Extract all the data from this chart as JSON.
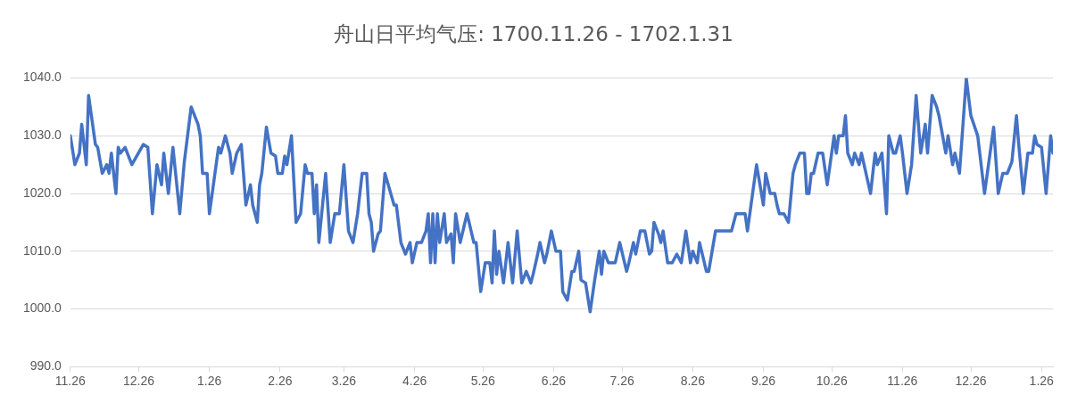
{
  "chart_data": {
    "type": "line",
    "title": "舟山日平均气压: 1700.11.26 - 1702.1.31",
    "xlim": [
      "1700-11-26",
      "1702-01-31"
    ],
    "xticks": [
      {
        "value": "1700-11-26",
        "label": "11.26"
      },
      {
        "value": "1700-12-26",
        "label": "12.26"
      },
      {
        "value": "1701-01-26",
        "label": "1.26"
      },
      {
        "value": "1701-02-26",
        "label": "2.26"
      },
      {
        "value": "1701-03-26",
        "label": "3.26"
      },
      {
        "value": "1701-04-26",
        "label": "4.26"
      },
      {
        "value": "1701-05-26",
        "label": "5.26"
      },
      {
        "value": "1701-06-26",
        "label": "6.26"
      },
      {
        "value": "1701-07-26",
        "label": "7.26"
      },
      {
        "value": "1701-08-26",
        "label": "8.26"
      },
      {
        "value": "1701-09-26",
        "label": "9.26"
      },
      {
        "value": "1701-10-26",
        "label": "10.26"
      },
      {
        "value": "1701-11-26",
        "label": "11.26"
      },
      {
        "value": "1701-12-26",
        "label": "12.26"
      },
      {
        "value": "1702-01-26",
        "label": "1.26"
      }
    ],
    "ylim": [
      990,
      1040
    ],
    "yticks": [
      {
        "value": 990,
        "label": "990.0"
      },
      {
        "value": 1000,
        "label": "1000.0"
      },
      {
        "value": 1010,
        "label": "1010.0"
      },
      {
        "value": 1020,
        "label": "1020.0"
      },
      {
        "value": 1030,
        "label": "1030.0"
      },
      {
        "value": 1040,
        "label": "1040.0"
      }
    ],
    "grid": "y",
    "legend": false,
    "marker": "none",
    "line_style": "solid",
    "series": [
      {
        "color": "#4472c4",
        "x": [
          "1700-11-26",
          "1700-11-28",
          "1700-11-30",
          "1700-12-01",
          "1700-12-03",
          "1700-12-04",
          "1700-12-07",
          "1700-12-08",
          "1700-12-10",
          "1700-12-12",
          "1700-12-13",
          "1700-12-14",
          "1700-12-16",
          "1700-12-17",
          "1700-12-18",
          "1700-12-20",
          "1700-12-23",
          "1700-12-28",
          "1700-12-30",
          "1701-01-01",
          "1701-01-03",
          "1701-01-05",
          "1701-01-06",
          "1701-01-08",
          "1701-01-10",
          "1701-01-13",
          "1701-01-15",
          "1701-01-18",
          "1701-01-21",
          "1701-01-22",
          "1701-01-23",
          "1701-01-25",
          "1701-01-26",
          "1701-01-30",
          "1701-01-31",
          "1701-02-02",
          "1701-02-04",
          "1701-02-05",
          "1701-02-07",
          "1701-02-09",
          "1701-02-11",
          "1701-02-13",
          "1701-02-14",
          "1701-02-16",
          "1701-02-17",
          "1701-02-18",
          "1701-02-20",
          "1701-02-22",
          "1701-02-24",
          "1701-02-25",
          "1701-02-27",
          "1701-02-28",
          "1701-03-01",
          "1701-03-03",
          "1701-03-05",
          "1701-03-07",
          "1701-03-09",
          "1701-03-10",
          "1701-03-12",
          "1701-03-13",
          "1701-03-14",
          "1701-03-15",
          "1701-03-18",
          "1701-03-20",
          "1701-03-22",
          "1701-03-24",
          "1701-03-26",
          "1701-03-28",
          "1701-03-30",
          "1701-04-01",
          "1701-04-03",
          "1701-04-05",
          "1701-04-06",
          "1701-04-07",
          "1701-04-08",
          "1701-04-10",
          "1701-04-11",
          "1701-04-13",
          "1701-04-17",
          "1701-04-18",
          "1701-04-20",
          "1701-04-22",
          "1701-04-24",
          "1701-04-25",
          "1701-04-27",
          "1701-04-29",
          "1701-05-01",
          "1701-05-02",
          "1701-05-03",
          "1701-05-04",
          "1701-05-05",
          "1701-05-06",
          "1701-05-07",
          "1701-05-09",
          "1701-05-10",
          "1701-05-12",
          "1701-05-13",
          "1701-05-14",
          "1701-05-16",
          "1701-05-19",
          "1701-05-22",
          "1701-05-23",
          "1701-05-25",
          "1701-05-27",
          "1701-05-29",
          "1701-05-30",
          "1701-05-31",
          "1701-06-01",
          "1701-06-02",
          "1701-06-04",
          "1701-06-06",
          "1701-06-08",
          "1701-06-10",
          "1701-06-12",
          "1701-06-14",
          "1701-06-16",
          "1701-06-17",
          "1701-06-19",
          "1701-06-20",
          "1701-06-22",
          "1701-06-23",
          "1701-06-25",
          "1701-06-27",
          "1701-06-29",
          "1701-06-30",
          "1701-07-02",
          "1701-07-04",
          "1701-07-05",
          "1701-07-07",
          "1701-07-08",
          "1701-07-10",
          "1701-07-12",
          "1701-07-14",
          "1701-07-16",
          "1701-07-17",
          "1701-07-18",
          "1701-07-20",
          "1701-07-23",
          "1701-07-25",
          "1701-07-28",
          "1701-07-29",
          "1701-07-31",
          "1701-08-01",
          "1701-08-03",
          "1701-08-05",
          "1701-08-07",
          "1701-08-08",
          "1701-08-09",
          "1701-08-11",
          "1701-08-12",
          "1701-08-13",
          "1701-08-15",
          "1701-08-17",
          "1701-08-19",
          "1701-08-21",
          "1701-08-23",
          "1701-08-25",
          "1701-08-26",
          "1701-08-28",
          "1701-08-29",
          "1701-09-01",
          "1701-09-02",
          "1701-09-05",
          "1701-09-12",
          "1701-09-14",
          "1701-09-18",
          "1701-09-19",
          "1701-09-23",
          "1701-09-26",
          "1701-09-27",
          "1701-09-29",
          "1701-10-01",
          "1701-10-02",
          "1701-10-03",
          "1701-10-05",
          "1701-10-07",
          "1701-10-09",
          "1701-10-10",
          "1701-10-12",
          "1701-10-14",
          "1701-10-15",
          "1701-10-16",
          "1701-10-17",
          "1701-10-18",
          "1701-10-20",
          "1701-10-22",
          "1701-10-24",
          "1701-10-27",
          "1701-10-28",
          "1701-10-29",
          "1701-10-31",
          "1701-11-01",
          "1701-11-02",
          "1701-11-04",
          "1701-11-05",
          "1701-11-07",
          "1701-11-08",
          "1701-11-10",
          "1701-11-12",
          "1701-11-14",
          "1701-11-15",
          "1701-11-17",
          "1701-11-19",
          "1701-11-20",
          "1701-11-22",
          "1701-11-23",
          "1701-11-25",
          "1701-11-26",
          "1701-11-28",
          "1701-11-30",
          "1701-12-02",
          "1701-12-04",
          "1701-12-06",
          "1701-12-07",
          "1701-12-09",
          "1701-12-11",
          "1701-12-12",
          "1701-12-15",
          "1701-12-16",
          "1701-12-18",
          "1701-12-19",
          "1701-12-21",
          "1701-12-24",
          "1701-12-26",
          "1701-12-29",
          "1702-01-01",
          "1702-01-05",
          "1702-01-07",
          "1702-01-09",
          "1702-01-11",
          "1702-01-13",
          "1702-01-15",
          "1702-01-16",
          "1702-01-18",
          "1702-01-20",
          "1702-01-22",
          "1702-01-23",
          "1702-01-24",
          "1702-01-26",
          "1702-01-28",
          "1702-01-30",
          "1702-01-31"
        ],
        "values": [
          1030,
          1025,
          1027,
          1032,
          1025,
          1037,
          1028.5,
          1028,
          1023.5,
          1025,
          1023.5,
          1027,
          1020,
          1028,
          1027,
          1028,
          1025,
          1028.5,
          1028,
          1016.5,
          1025,
          1021.5,
          1027,
          1020,
          1028,
          1016.5,
          1025.5,
          1035,
          1032,
          1030,
          1023.5,
          1023.5,
          1016.5,
          1028,
          1027,
          1030,
          1027,
          1023.5,
          1027,
          1028.5,
          1018,
          1021.5,
          1018,
          1015,
          1021.5,
          1023.5,
          1031.5,
          1027,
          1026.5,
          1023.5,
          1023.5,
          1026.5,
          1025,
          1030,
          1015,
          1016.5,
          1025,
          1023.5,
          1023.5,
          1016.5,
          1021.5,
          1011.5,
          1023.5,
          1011.5,
          1016.5,
          1016.5,
          1025,
          1013.5,
          1011.5,
          1016.5,
          1023.5,
          1023.5,
          1016.5,
          1015,
          1010,
          1013,
          1013.5,
          1023.5,
          1018,
          1018,
          1011.5,
          1009.5,
          1011.5,
          1008,
          1011.5,
          1011.5,
          1013.5,
          1016.5,
          1008,
          1016.5,
          1008,
          1016.5,
          1011.5,
          1016.5,
          1011.5,
          1013,
          1008,
          1016.5,
          1011.5,
          1016.5,
          1011.5,
          1011.5,
          1003,
          1008,
          1008,
          1004.5,
          1013.5,
          1006,
          1010,
          1004.5,
          1011.5,
          1004.5,
          1013.5,
          1004.5,
          1006.5,
          1004.5,
          1006,
          1009.5,
          1011.5,
          1008,
          1009.5,
          1013.5,
          1010,
          1010,
          1003,
          1001.5,
          1006.5,
          1006.5,
          1010,
          1005,
          1004.5,
          999.5,
          1005,
          1010,
          1006,
          1010,
          1008,
          1008,
          1011.5,
          1006.5,
          1008,
          1011.5,
          1009.5,
          1013.5,
          1013.5,
          1009.5,
          1010,
          1015,
          1013,
          1011.5,
          1013.5,
          1008,
          1008,
          1009.5,
          1008,
          1013.5,
          1008,
          1010,
          1008,
          1011.5,
          1006.5,
          1006.5,
          1013.5,
          1013.5,
          1016.5,
          1016.5,
          1013.5,
          1025,
          1018,
          1023.5,
          1020,
          1020,
          1018,
          1016.5,
          1016.5,
          1015,
          1023.5,
          1025,
          1027,
          1027,
          1020,
          1020,
          1023.5,
          1023.5,
          1027,
          1027,
          1021.5,
          1030,
          1027,
          1030,
          1030,
          1033.5,
          1027,
          1025,
          1027,
          1025,
          1027,
          1023.5,
          1020,
          1027,
          1025,
          1027,
          1016.5,
          1030,
          1027,
          1027,
          1030,
          1027,
          1020,
          1025,
          1037,
          1027,
          1032,
          1027,
          1037,
          1035,
          1033.5,
          1027,
          1030,
          1025,
          1027,
          1023.5,
          1040,
          1033.5,
          1030,
          1020,
          1031.5,
          1020,
          1023.5,
          1023.5,
          1025.5,
          1033.5,
          1028.5,
          1020,
          1027,
          1027,
          1030,
          1028.5,
          1028,
          1020,
          1030,
          1027
        ]
      }
    ]
  }
}
